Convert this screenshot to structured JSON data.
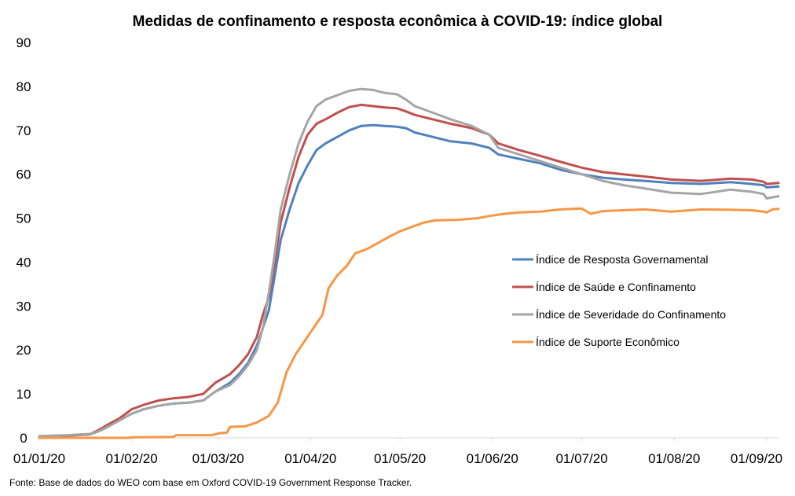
{
  "chart_data": {
    "type": "line",
    "title": "Medidas de confinamento e resposta econômica à COVID-19: índice global",
    "source": "Fonte: Base de dados do WEO com base em Oxford COVID-19 Government Response Tracker.",
    "xlabel": "",
    "ylabel": "",
    "ylim": [
      0,
      90
    ],
    "yticks": [
      "0",
      "10",
      "20",
      "30",
      "40",
      "50",
      "60",
      "70",
      "80",
      "90"
    ],
    "xticks": [
      "01/01/20",
      "01/02/20",
      "01/03/20",
      "01/04/20",
      "01/05/20",
      "01/06/20",
      "01/07/20",
      "01/08/20",
      "01/09/20"
    ],
    "x_date_range": [
      "2020-01-01",
      "2020-09-05"
    ],
    "grid": false,
    "legend_position": "right-middle",
    "series": [
      {
        "name": "Índice de Resposta Governamental",
        "color": "#4f81bd",
        "points": [
          [
            "2020-01-01",
            0.3
          ],
          [
            "2020-01-10",
            0.5
          ],
          [
            "2020-01-18",
            0.8
          ],
          [
            "2020-01-21",
            1.5
          ],
          [
            "2020-01-24",
            2.5
          ],
          [
            "2020-01-28",
            4
          ],
          [
            "2020-02-01",
            5.5
          ],
          [
            "2020-02-05",
            6.5
          ],
          [
            "2020-02-10",
            7.3
          ],
          [
            "2020-02-15",
            7.8
          ],
          [
            "2020-02-20",
            8
          ],
          [
            "2020-02-25",
            8.5
          ],
          [
            "2020-02-29",
            10.5
          ],
          [
            "2020-03-05",
            12.5
          ],
          [
            "2020-03-08",
            14.5
          ],
          [
            "2020-03-11",
            17
          ],
          [
            "2020-03-14",
            21
          ],
          [
            "2020-03-16",
            25
          ],
          [
            "2020-03-18",
            29
          ],
          [
            "2020-03-20",
            37
          ],
          [
            "2020-03-22",
            45
          ],
          [
            "2020-03-25",
            52
          ],
          [
            "2020-03-28",
            58
          ],
          [
            "2020-03-31",
            62
          ],
          [
            "2020-04-03",
            65.5
          ],
          [
            "2020-04-06",
            67
          ],
          [
            "2020-04-10",
            68.5
          ],
          [
            "2020-04-14",
            70
          ],
          [
            "2020-04-18",
            71
          ],
          [
            "2020-04-22",
            71.2
          ],
          [
            "2020-04-26",
            71
          ],
          [
            "2020-04-30",
            70.8
          ],
          [
            "2020-05-03",
            70.5
          ],
          [
            "2020-05-06",
            69.5
          ],
          [
            "2020-05-12",
            68.5
          ],
          [
            "2020-05-18",
            67.5
          ],
          [
            "2020-05-25",
            67
          ],
          [
            "2020-05-31",
            66
          ],
          [
            "2020-06-03",
            64.5
          ],
          [
            "2020-06-10",
            63.5
          ],
          [
            "2020-06-17",
            62.5
          ],
          [
            "2020-06-24",
            61
          ],
          [
            "2020-07-01",
            60
          ],
          [
            "2020-07-08",
            59.2
          ],
          [
            "2020-07-15",
            58.8
          ],
          [
            "2020-07-22",
            58.5
          ],
          [
            "2020-07-31",
            58
          ],
          [
            "2020-08-10",
            57.8
          ],
          [
            "2020-08-20",
            58.2
          ],
          [
            "2020-08-27",
            57.8
          ],
          [
            "2020-08-31",
            57.5
          ],
          [
            "2020-09-01",
            57
          ],
          [
            "2020-09-05",
            57.2
          ]
        ]
      },
      {
        "name": "Índice de Saúde e Confinamento",
        "color": "#c0504d",
        "points": [
          [
            "2020-01-01",
            0.3
          ],
          [
            "2020-01-10",
            0.5
          ],
          [
            "2020-01-18",
            0.8
          ],
          [
            "2020-01-21",
            1.8
          ],
          [
            "2020-01-24",
            3
          ],
          [
            "2020-01-28",
            4.5
          ],
          [
            "2020-02-01",
            6.5
          ],
          [
            "2020-02-05",
            7.5
          ],
          [
            "2020-02-10",
            8.5
          ],
          [
            "2020-02-15",
            9
          ],
          [
            "2020-02-20",
            9.3
          ],
          [
            "2020-02-25",
            10
          ],
          [
            "2020-02-29",
            12.5
          ],
          [
            "2020-03-05",
            14.5
          ],
          [
            "2020-03-08",
            16.5
          ],
          [
            "2020-03-11",
            19
          ],
          [
            "2020-03-14",
            23
          ],
          [
            "2020-03-16",
            28
          ],
          [
            "2020-03-18",
            32
          ],
          [
            "2020-03-20",
            40
          ],
          [
            "2020-03-22",
            49
          ],
          [
            "2020-03-25",
            57
          ],
          [
            "2020-03-28",
            64
          ],
          [
            "2020-03-31",
            69
          ],
          [
            "2020-04-03",
            71.5
          ],
          [
            "2020-04-06",
            72.5
          ],
          [
            "2020-04-10",
            74
          ],
          [
            "2020-04-14",
            75.3
          ],
          [
            "2020-04-18",
            75.8
          ],
          [
            "2020-04-22",
            75.5
          ],
          [
            "2020-04-26",
            75.2
          ],
          [
            "2020-04-30",
            75
          ],
          [
            "2020-05-03",
            74.3
          ],
          [
            "2020-05-06",
            73.5
          ],
          [
            "2020-05-12",
            72.5
          ],
          [
            "2020-05-18",
            71.5
          ],
          [
            "2020-05-25",
            70.5
          ],
          [
            "2020-05-31",
            69
          ],
          [
            "2020-06-03",
            67
          ],
          [
            "2020-06-10",
            65.5
          ],
          [
            "2020-06-17",
            64.2
          ],
          [
            "2020-06-24",
            62.8
          ],
          [
            "2020-07-01",
            61.5
          ],
          [
            "2020-07-08",
            60.5
          ],
          [
            "2020-07-15",
            60
          ],
          [
            "2020-07-22",
            59.5
          ],
          [
            "2020-07-31",
            58.8
          ],
          [
            "2020-08-10",
            58.5
          ],
          [
            "2020-08-20",
            59
          ],
          [
            "2020-08-27",
            58.8
          ],
          [
            "2020-08-31",
            58.3
          ],
          [
            "2020-09-01",
            57.8
          ],
          [
            "2020-09-05",
            58
          ]
        ]
      },
      {
        "name": "Índice de Severidade do Confinamento",
        "color": "#a5a5a5",
        "points": [
          [
            "2020-01-01",
            0.4
          ],
          [
            "2020-01-10",
            0.6
          ],
          [
            "2020-01-18",
            0.9
          ],
          [
            "2020-01-21",
            1.5
          ],
          [
            "2020-01-24",
            2.5
          ],
          [
            "2020-01-28",
            4
          ],
          [
            "2020-02-01",
            5.5
          ],
          [
            "2020-02-05",
            6.5
          ],
          [
            "2020-02-10",
            7.3
          ],
          [
            "2020-02-15",
            7.8
          ],
          [
            "2020-02-20",
            8
          ],
          [
            "2020-02-25",
            8.5
          ],
          [
            "2020-02-29",
            10.5
          ],
          [
            "2020-03-05",
            12
          ],
          [
            "2020-03-08",
            14
          ],
          [
            "2020-03-11",
            16.5
          ],
          [
            "2020-03-14",
            20
          ],
          [
            "2020-03-16",
            25
          ],
          [
            "2020-03-18",
            33
          ],
          [
            "2020-03-20",
            42
          ],
          [
            "2020-03-22",
            52
          ],
          [
            "2020-03-25",
            60
          ],
          [
            "2020-03-28",
            67
          ],
          [
            "2020-03-31",
            72
          ],
          [
            "2020-04-03",
            75.5
          ],
          [
            "2020-04-06",
            77
          ],
          [
            "2020-04-10",
            78
          ],
          [
            "2020-04-14",
            79
          ],
          [
            "2020-04-18",
            79.4
          ],
          [
            "2020-04-22",
            79.2
          ],
          [
            "2020-04-26",
            78.5
          ],
          [
            "2020-04-30",
            78.2
          ],
          [
            "2020-05-03",
            77
          ],
          [
            "2020-05-06",
            75.5
          ],
          [
            "2020-05-12",
            74
          ],
          [
            "2020-05-18",
            72.5
          ],
          [
            "2020-05-25",
            71
          ],
          [
            "2020-05-31",
            69
          ],
          [
            "2020-06-03",
            66
          ],
          [
            "2020-06-10",
            64.5
          ],
          [
            "2020-06-17",
            63
          ],
          [
            "2020-06-24",
            61.5
          ],
          [
            "2020-07-01",
            60
          ],
          [
            "2020-07-08",
            58.5
          ],
          [
            "2020-07-15",
            57.5
          ],
          [
            "2020-07-22",
            56.8
          ],
          [
            "2020-07-31",
            55.8
          ],
          [
            "2020-08-10",
            55.5
          ],
          [
            "2020-08-20",
            56.5
          ],
          [
            "2020-08-27",
            56
          ],
          [
            "2020-08-31",
            55.5
          ],
          [
            "2020-09-01",
            54.5
          ],
          [
            "2020-09-05",
            55
          ]
        ]
      },
      {
        "name": "Índice de Suporte Econômico",
        "color": "#f79646",
        "points": [
          [
            "2020-01-01",
            0
          ],
          [
            "2020-01-31",
            0
          ],
          [
            "2020-02-01",
            0.1
          ],
          [
            "2020-02-15",
            0.2
          ],
          [
            "2020-02-16",
            0.6
          ],
          [
            "2020-02-28",
            0.6
          ],
          [
            "2020-03-01",
            1
          ],
          [
            "2020-03-04",
            1.2
          ],
          [
            "2020-03-05",
            2.5
          ],
          [
            "2020-03-10",
            2.6
          ],
          [
            "2020-03-14",
            3.5
          ],
          [
            "2020-03-18",
            5
          ],
          [
            "2020-03-21",
            8
          ],
          [
            "2020-03-24",
            15
          ],
          [
            "2020-03-27",
            19
          ],
          [
            "2020-03-30",
            22
          ],
          [
            "2020-04-02",
            25
          ],
          [
            "2020-04-05",
            28
          ],
          [
            "2020-04-07",
            34
          ],
          [
            "2020-04-10",
            37
          ],
          [
            "2020-04-13",
            39
          ],
          [
            "2020-04-16",
            42
          ],
          [
            "2020-04-20",
            43
          ],
          [
            "2020-04-24",
            44.5
          ],
          [
            "2020-04-28",
            46
          ],
          [
            "2020-05-01",
            47
          ],
          [
            "2020-05-05",
            48
          ],
          [
            "2020-05-09",
            49
          ],
          [
            "2020-05-13",
            49.5
          ],
          [
            "2020-05-20",
            49.6
          ],
          [
            "2020-05-27",
            50
          ],
          [
            "2020-05-31",
            50.5
          ],
          [
            "2020-06-05",
            51
          ],
          [
            "2020-06-10",
            51.3
          ],
          [
            "2020-06-17",
            51.5
          ],
          [
            "2020-06-24",
            52
          ],
          [
            "2020-07-01",
            52.2
          ],
          [
            "2020-07-04",
            51
          ],
          [
            "2020-07-08",
            51.6
          ],
          [
            "2020-07-15",
            51.8
          ],
          [
            "2020-07-22",
            52
          ],
          [
            "2020-07-31",
            51.5
          ],
          [
            "2020-08-10",
            52
          ],
          [
            "2020-08-20",
            51.9
          ],
          [
            "2020-08-27",
            51.8
          ],
          [
            "2020-08-31",
            51.5
          ],
          [
            "2020-09-01",
            51.3
          ],
          [
            "2020-09-03",
            52
          ],
          [
            "2020-09-05",
            52.1
          ]
        ]
      }
    ]
  }
}
